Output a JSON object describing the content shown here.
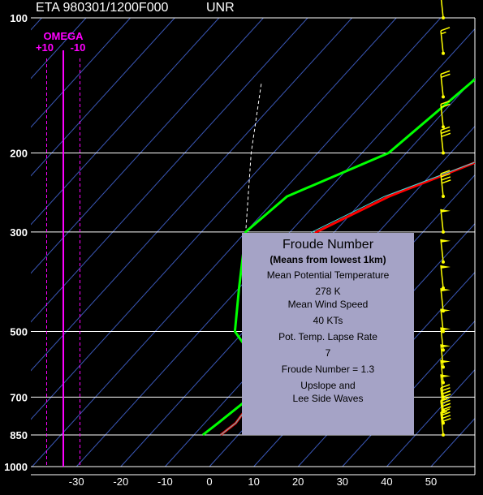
{
  "header": {
    "title": "ETA 980301/1200F000",
    "station": "UNR"
  },
  "omega": {
    "label": "OMEGA",
    "left_tick": "+10",
    "right_tick": "-10"
  },
  "colors": {
    "background": "#000000",
    "isobar": "#ffffff",
    "isotherm": "#3a57b6",
    "temperature": "#ff0000",
    "virtual_temperature": "#44d6d6",
    "dewpoint": "#00ff00",
    "parcel": "#ffffff",
    "omega": "#ff00ff",
    "wind_barbs": "#ffff00",
    "info_box": "#a5a3c6"
  },
  "chart_data": {
    "type": "line",
    "subtype": "skew-T log-P sounding",
    "title": "ETA 980301/1200F000",
    "station": "UNR",
    "xlabel": "",
    "ylabel": "",
    "x_ticks": [
      "-30",
      "-20",
      "-10",
      "0",
      "10",
      "20",
      "30",
      "40",
      "50"
    ],
    "xlim": [
      -34,
      56
    ],
    "pressure_levels": [
      "100",
      "200",
      "300",
      "500",
      "700",
      "850",
      "1000"
    ],
    "ylim": [
      1000,
      100
    ],
    "y_scale": "log",
    "grid": true,
    "series": [
      {
        "key": "temperature",
        "pressure": [
          850,
          800,
          700,
          600,
          500,
          400,
          300,
          250,
          200,
          100
        ],
        "values": [
          -4,
          -3,
          -4,
          -9,
          -14,
          -23,
          -24,
          -15,
          1,
          26
        ]
      },
      {
        "key": "virtual_temperature",
        "pressure": [
          850,
          800,
          700,
          600,
          500,
          400,
          300,
          250,
          200,
          100
        ],
        "values": [
          -4,
          -3,
          -4,
          -9,
          -15,
          -24,
          -25,
          -16,
          1,
          26
        ]
      },
      {
        "key": "dewpoint",
        "pressure": [
          850,
          800,
          700,
          600,
          500,
          400,
          300,
          250,
          200,
          100
        ],
        "values": [
          -8,
          -7,
          -5,
          -9,
          -22,
          -30,
          -40,
          -38,
          -24,
          -16
        ]
      },
      {
        "key": "parcel",
        "pressure": [
          700,
          500,
          300,
          200,
          140
        ],
        "values": [
          -4,
          -16,
          -40,
          -55,
          -67
        ]
      }
    ],
    "omega_profile": {
      "pressure": [
        1000,
        100
      ],
      "values": [
        0,
        0
      ]
    },
    "wind_profile": {
      "pressure": [
        100,
        120,
        150,
        175,
        200,
        250,
        300,
        350,
        400,
        450,
        500,
        550,
        600,
        650,
        700,
        750,
        800,
        850
      ],
      "speed_kt": [
        10,
        15,
        20,
        20,
        30,
        40,
        50,
        50,
        50,
        50,
        50,
        50,
        50,
        50,
        50,
        45,
        45,
        40
      ]
    }
  },
  "info_box": {
    "title": "Froude Number",
    "subtitle": "(Means from lowest 1km)",
    "line1": "Mean Potential Temperature",
    "line2": "278 K",
    "line3": "Mean Wind Speed",
    "line4": "40 KTs",
    "line5": "Pot. Temp. Lapse Rate",
    "line6": "7",
    "line7": "Froude Number = 1.3",
    "line8": "Upslope and",
    "line9": "Lee Side Waves"
  }
}
